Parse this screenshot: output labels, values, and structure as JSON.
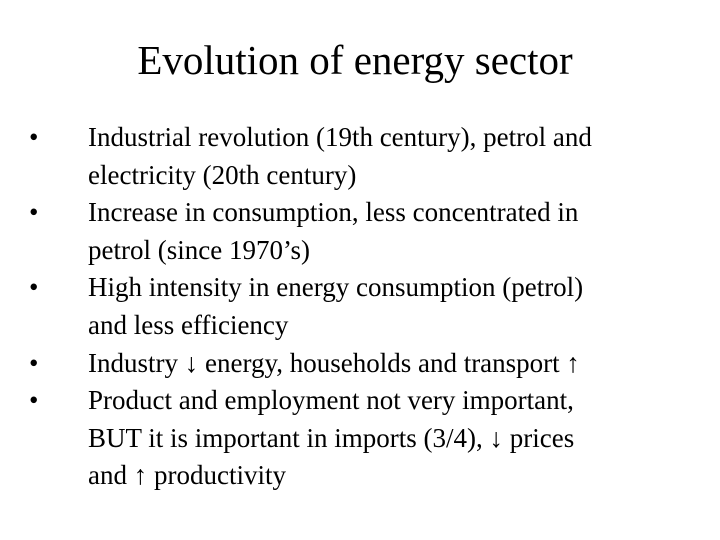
{
  "title": "Evolution of energy sector",
  "bullets": [
    {
      "lines": [
        "Industrial revolution (19th century), petrol and",
        "electricity (20th century)"
      ]
    },
    {
      "lines": [
        "Increase in consumption, less concentrated in",
        "petrol (since 1970’s)"
      ]
    },
    {
      "lines": [
        "High intensity in energy consumption (petrol)",
        "and less efficiency"
      ]
    },
    {
      "lines": [
        "Industry ↓ energy, households and transport ↑"
      ]
    },
    {
      "lines": [
        "Product and employment not very important,",
        "BUT it is important in imports (3/4), ↓ prices",
        "and ↑ productivity"
      ]
    }
  ]
}
